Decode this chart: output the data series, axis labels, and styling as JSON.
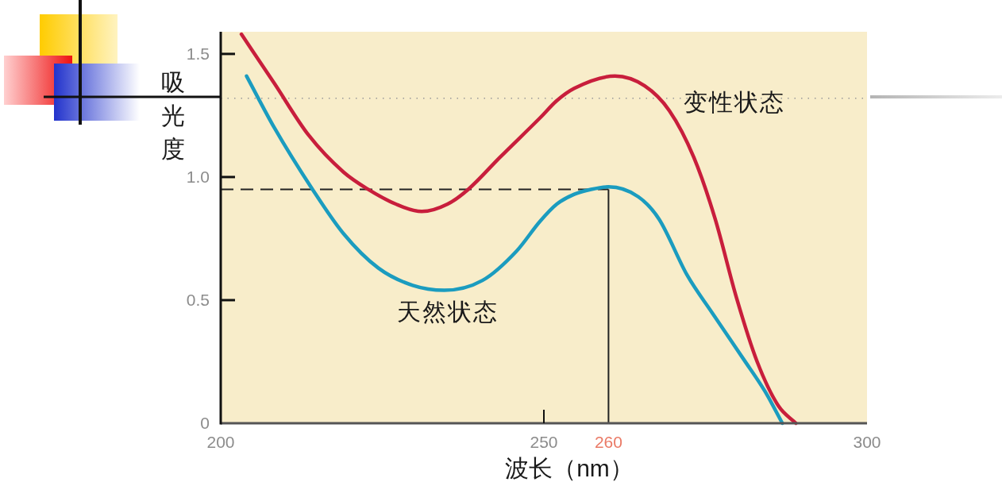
{
  "chart_data": {
    "type": "line",
    "xlabel": "波长（nm）",
    "ylabel": "吸光度",
    "xlim": [
      200,
      300
    ],
    "ylim": [
      0,
      1.59
    ],
    "xticks": [
      200,
      250,
      300
    ],
    "yticks": [
      0,
      0.5,
      {
        "value": 1,
        "label": "1.0"
      },
      1.5
    ],
    "series": [
      {
        "name": "变性状态",
        "color": "#c81e3c",
        "x": [
          203.2,
          208.3,
          213.6,
          219,
          222.8,
          227.1,
          231.1,
          235.1,
          238.3,
          243.2,
          249.4,
          252,
          254.7,
          261,
          265.6,
          269.4,
          273.2,
          276.5,
          279.8,
          283,
          286.3,
          289
        ],
        "values": [
          1.58,
          1.38,
          1.17,
          1.02,
          0.95,
          0.89,
          0.86,
          0.89,
          0.95,
          1.08,
          1.24,
          1.31,
          1.36,
          1.41,
          1.37,
          1.27,
          1.08,
          0.83,
          0.51,
          0.25,
          0.07,
          0
        ]
      },
      {
        "name": "天然状态",
        "color": "#1b9cbf",
        "x": [
          204,
          208.3,
          214.2,
          219,
          224.4,
          229.7,
          234.6,
          240.5,
          245.8,
          249.4,
          252,
          254.7,
          257.3,
          260,
          264.6,
          267.8,
          272.2,
          276,
          280.9,
          284.2,
          286.9
        ],
        "values": [
          1.41,
          1.2,
          0.95,
          0.77,
          0.63,
          0.56,
          0.54,
          0.58,
          0.7,
          0.82,
          0.89,
          0.93,
          0.95,
          0.96,
          0.92,
          0.83,
          0.6,
          0.45,
          0.26,
          0.13,
          0
        ]
      }
    ],
    "ref_lines": [
      {
        "axis": "y",
        "value": 1.32,
        "color": "#999999",
        "line_style": "dotted"
      },
      {
        "axis": "y",
        "value": 0.95,
        "color": "#222222",
        "line_style": "dashed"
      },
      {
        "axis": "x",
        "value": 260,
        "label": "260",
        "color": "#222222",
        "line_style": "solid"
      }
    ]
  }
}
